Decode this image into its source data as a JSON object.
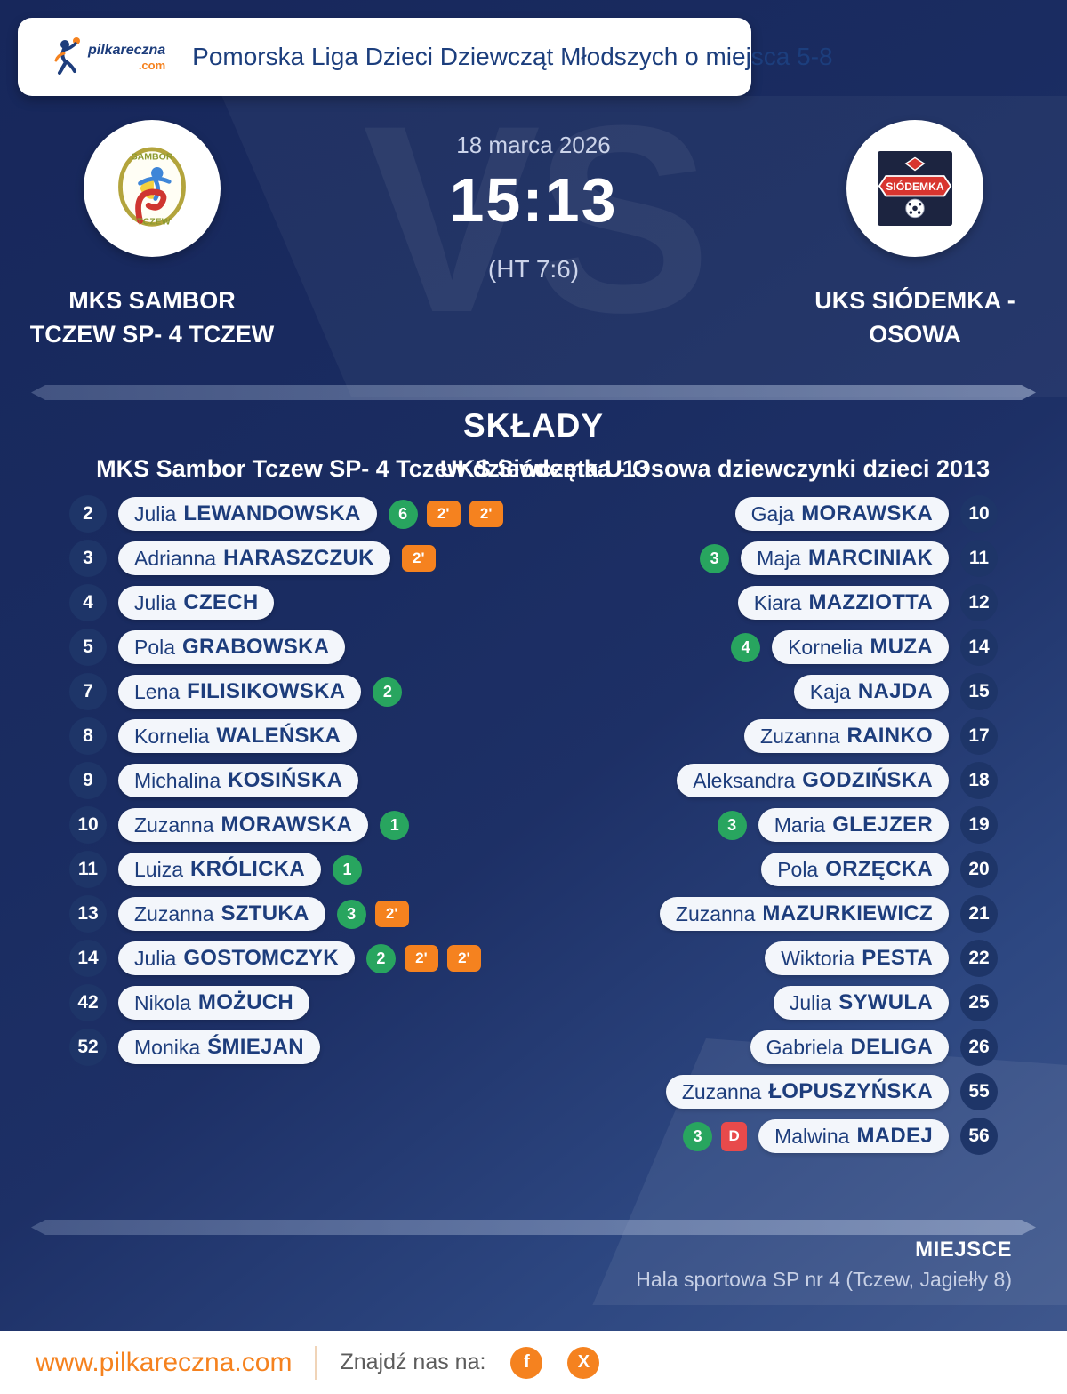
{
  "header": {
    "logo_text": "pilkareczna",
    "logo_tld": ".com",
    "title": "Pomorska Liga Dzieci Dziewcząt Młodszych o miejsca 5-8"
  },
  "match": {
    "date": "18 marca 2026",
    "time": "15:13",
    "halftime": "(HT 7:6)",
    "vs": "VS",
    "home": {
      "name_line1": "MKS SAMBOR",
      "name_line2": "TCZEW SP- 4 TCZEW",
      "logo_text_top": "SAMBOR",
      "logo_text_bottom": "TCZEW"
    },
    "away": {
      "name_line1": "UKS SIÓDEMKA -",
      "name_line2": "OSOWA",
      "logo_band_text": "SIÓDEMKA"
    }
  },
  "lineups": {
    "heading": "SKŁADY",
    "home_subtitle": "MKS Sambor Tczew SP- 4 Tczew dziewczęta U13",
    "away_subtitle": "UKS Siódemka - Osowa dziewczynki dzieci 2013",
    "home_players": [
      {
        "number": "2",
        "first": "Julia",
        "last": "LEWANDOWSKA",
        "badges": [
          {
            "kind": "goals",
            "label": "6"
          },
          {
            "kind": "suspension",
            "label": "2'"
          },
          {
            "kind": "suspension",
            "label": "2'"
          }
        ]
      },
      {
        "number": "3",
        "first": "Adrianna",
        "last": "HARASZCZUK",
        "badges": [
          {
            "kind": "suspension",
            "label": "2'"
          }
        ]
      },
      {
        "number": "4",
        "first": "Julia",
        "last": "CZECH",
        "badges": []
      },
      {
        "number": "5",
        "first": "Pola",
        "last": "GRABOWSKA",
        "badges": []
      },
      {
        "number": "7",
        "first": "Lena",
        "last": "FILISIKOWSKA",
        "badges": [
          {
            "kind": "goals",
            "label": "2"
          }
        ]
      },
      {
        "number": "8",
        "first": "Kornelia",
        "last": "WALEŃSKA",
        "badges": []
      },
      {
        "number": "9",
        "first": "Michalina",
        "last": "KOSIŃSKA",
        "badges": []
      },
      {
        "number": "10",
        "first": "Zuzanna",
        "last": "MORAWSKA",
        "badges": [
          {
            "kind": "goals",
            "label": "1"
          }
        ]
      },
      {
        "number": "11",
        "first": "Luiza",
        "last": "KRÓLICKA",
        "badges": [
          {
            "kind": "goals",
            "label": "1"
          }
        ]
      },
      {
        "number": "13",
        "first": "Zuzanna",
        "last": "SZTUKA",
        "badges": [
          {
            "kind": "goals",
            "label": "3"
          },
          {
            "kind": "suspension",
            "label": "2'"
          }
        ]
      },
      {
        "number": "14",
        "first": "Julia",
        "last": "GOSTOMCZYK",
        "badges": [
          {
            "kind": "goals",
            "label": "2"
          },
          {
            "kind": "suspension",
            "label": "2'"
          },
          {
            "kind": "suspension",
            "label": "2'"
          }
        ]
      },
      {
        "number": "42",
        "first": "Nikola",
        "last": "MOŻUCH",
        "badges": []
      },
      {
        "number": "52",
        "first": "Monika",
        "last": "ŚMIEJAN",
        "badges": []
      }
    ],
    "away_players": [
      {
        "number": "10",
        "first": "Gaja",
        "last": "MORAWSKA",
        "badges": []
      },
      {
        "number": "11",
        "first": "Maja",
        "last": "MARCINIAK",
        "badges": [
          {
            "kind": "goals",
            "label": "3"
          }
        ]
      },
      {
        "number": "12",
        "first": "Kiara",
        "last": "MAZZIOTTA",
        "badges": []
      },
      {
        "number": "14",
        "first": "Kornelia",
        "last": "MUZA",
        "badges": [
          {
            "kind": "goals",
            "label": "4"
          }
        ]
      },
      {
        "number": "15",
        "first": "Kaja",
        "last": "NAJDA",
        "badges": []
      },
      {
        "number": "17",
        "first": "Zuzanna",
        "last": "RAINKO",
        "badges": []
      },
      {
        "number": "18",
        "first": "Aleksandra",
        "last": "GODZIŃSKA",
        "badges": []
      },
      {
        "number": "19",
        "first": "Maria",
        "last": "GLEJZER",
        "badges": [
          {
            "kind": "goals",
            "label": "3"
          }
        ]
      },
      {
        "number": "20",
        "first": "Pola",
        "last": "ORZĘCKA",
        "badges": []
      },
      {
        "number": "21",
        "first": "Zuzanna",
        "last": "MAZURKIEWICZ",
        "badges": []
      },
      {
        "number": "22",
        "first": "Wiktoria",
        "last": "PESTA",
        "badges": []
      },
      {
        "number": "25",
        "first": "Julia",
        "last": "SYWULA",
        "badges": []
      },
      {
        "number": "26",
        "first": "Gabriela",
        "last": "DELIGA",
        "badges": []
      },
      {
        "number": "55",
        "first": "Zuzanna",
        "last": "ŁOPUSZYŃSKA",
        "badges": []
      },
      {
        "number": "56",
        "first": "Malwina",
        "last": "MADEJ",
        "badges": [
          {
            "kind": "goals",
            "label": "3"
          },
          {
            "kind": "dq",
            "label": "D"
          }
        ]
      }
    ]
  },
  "venue": {
    "label": "MIEJSCE",
    "value": "Hala sportowa SP nr 4 (Tczew, Jagiełły 8)"
  },
  "footer": {
    "website": "www.pilkareczna.com",
    "find_us_label": "Znajdź nas na:",
    "social": [
      {
        "label": "f",
        "name": "facebook"
      },
      {
        "label": "X",
        "name": "x-twitter"
      }
    ]
  },
  "colors": {
    "background_navy": "#1a2c61",
    "text_navy": "#1d3d7c",
    "accent_orange": "#f5821f",
    "goal_green": "#28a55f",
    "suspension_orange": "#f5821f",
    "disqualification_red": "#e84a4b",
    "pill_white": "#f3f6fb"
  }
}
